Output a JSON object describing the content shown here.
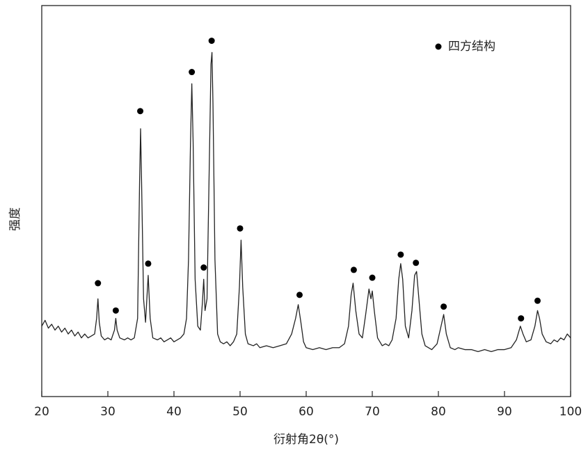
{
  "chart_data": {
    "type": "line",
    "xlabel": "衍射角2θ(°)",
    "ylabel": "强度",
    "xlim": [
      20,
      100
    ],
    "ylim": [
      0,
      100
    ],
    "xticks": [
      20,
      30,
      40,
      50,
      60,
      70,
      80,
      90,
      100
    ],
    "legend": "upper right",
    "series": [
      {
        "color": "#222222",
        "x": [
          20,
          20.5,
          21,
          21.5,
          22,
          22.5,
          23,
          23.5,
          24,
          24.5,
          25,
          25.5,
          26,
          26.5,
          27,
          27.5,
          28,
          28.3,
          28.5,
          28.7,
          29,
          29.5,
          30,
          30.5,
          31,
          31.2,
          31.4,
          31.8,
          32.5,
          33,
          33.5,
          34,
          34.5,
          34.8,
          34.95,
          35.1,
          35.4,
          35.7,
          36.1,
          36.4,
          36.8,
          37.5,
          38,
          38.5,
          39,
          39.5,
          40,
          40.5,
          41,
          41.5,
          41.9,
          42.2,
          42.5,
          42.7,
          42.9,
          43.2,
          43.6,
          44,
          44.3,
          44.5,
          44.7,
          45,
          45.3,
          45.6,
          45.75,
          45.9,
          46.2,
          46.6,
          47,
          47.5,
          48,
          48.5,
          49,
          49.5,
          49.9,
          50.15,
          50.4,
          50.8,
          51.2,
          52,
          52.5,
          53,
          54,
          55,
          56,
          57,
          57.8,
          58.4,
          58.8,
          59.2,
          59.6,
          60,
          61,
          62,
          63,
          64,
          65,
          65.8,
          66.4,
          66.8,
          67.1,
          67.5,
          68,
          68.5,
          69,
          69.5,
          69.8,
          70,
          70.3,
          70.8,
          71.5,
          72,
          72.5,
          73,
          73.6,
          74,
          74.3,
          74.6,
          75,
          75.5,
          76,
          76.4,
          76.7,
          77,
          77.5,
          78,
          79,
          79.8,
          80.4,
          80.8,
          81.2,
          81.8,
          82.5,
          83,
          84,
          85,
          86,
          87,
          88,
          89,
          90,
          91,
          91.8,
          92.4,
          92.8,
          93.3,
          94,
          94.6,
          95,
          95.3,
          95.7,
          96.3,
          97,
          97.5,
          98,
          98.5,
          99,
          99.5,
          100
        ],
        "values": [
          18,
          19.5,
          17.5,
          18.5,
          17,
          18,
          16.5,
          17.5,
          16,
          17,
          15.5,
          16.5,
          15,
          16,
          15,
          15.5,
          16,
          20,
          25,
          19,
          15.5,
          14.5,
          15,
          14.5,
          17,
          20,
          17,
          15,
          14.5,
          15,
          14.5,
          15,
          20,
          55,
          68.5,
          55,
          25,
          19,
          31,
          20,
          15,
          14.5,
          15,
          14,
          14.5,
          15,
          14,
          14.5,
          15,
          16,
          20,
          35,
          65,
          80,
          65,
          30,
          18,
          17,
          24,
          30,
          22,
          25,
          55,
          85,
          88,
          75,
          35,
          16,
          14,
          13.5,
          14,
          13,
          14,
          16,
          28,
          40,
          28,
          16,
          13.5,
          13,
          13.5,
          12.5,
          13,
          12.5,
          13,
          13.5,
          16,
          20,
          23.5,
          19,
          14,
          12.5,
          12,
          12.5,
          12,
          12.5,
          12.5,
          13.5,
          18,
          26,
          29,
          22,
          16,
          15,
          21,
          27.5,
          25,
          27,
          22,
          15,
          13,
          13.5,
          13,
          14.5,
          20,
          30,
          34,
          30,
          18,
          15,
          22,
          31,
          32,
          26,
          16,
          13,
          12,
          13.5,
          18,
          21,
          16,
          12.5,
          12,
          12.5,
          12,
          12,
          11.5,
          12,
          11.5,
          12,
          12,
          12.5,
          14.5,
          18,
          16,
          14,
          14.5,
          18,
          22,
          20,
          16,
          14,
          13.5,
          14.5,
          14,
          15,
          14.5,
          16,
          15
        ]
      },
      {
        "type": "scatter",
        "name": "四方结构",
        "color": "#000000",
        "x": [
          28.5,
          31.2,
          34.9,
          36.1,
          42.7,
          44.5,
          45.7,
          50.0,
          59.0,
          67.2,
          70.0,
          74.3,
          76.6,
          80.8,
          92.5,
          95.0
        ],
        "values": [
          29,
          22,
          73,
          34,
          83,
          33,
          91,
          43,
          26,
          32.4,
          30.4,
          36.3,
          34.2,
          23,
          20,
          24.5
        ]
      }
    ]
  }
}
